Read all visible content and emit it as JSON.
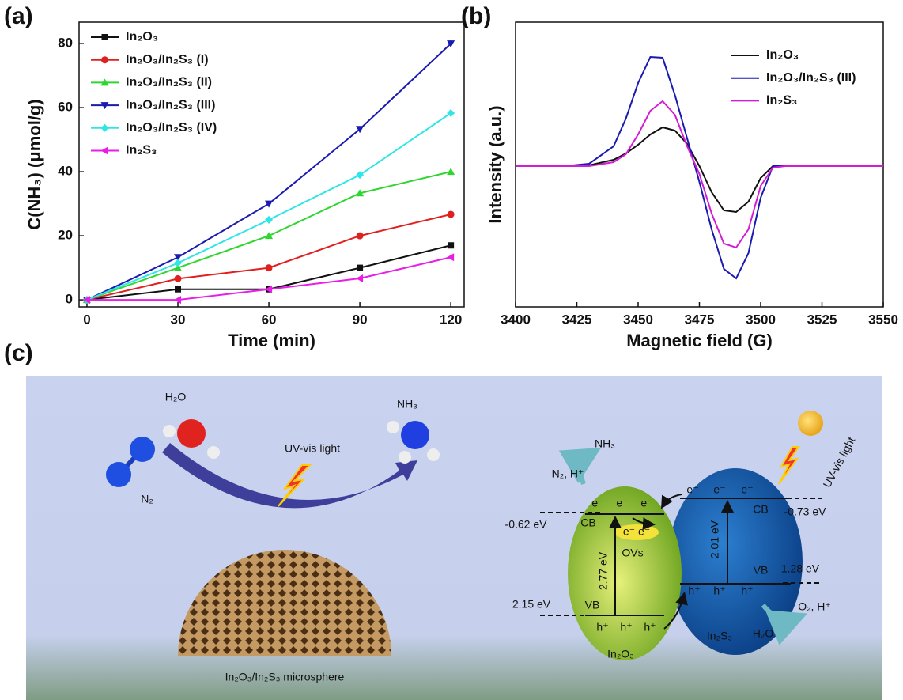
{
  "panel_labels": [
    "(a)",
    "(b)",
    "(c)"
  ],
  "chart_data": [
    {
      "type": "line",
      "x_label": "Time (min)",
      "y_label": "C(NH₃) (μmol/g)",
      "x": [
        0,
        30,
        60,
        90,
        120
      ],
      "xlim": [
        -2.6,
        124.4
      ],
      "xticks": [
        0,
        30,
        60,
        90,
        120
      ],
      "ylim": [
        -2.2,
        86.7
      ],
      "yticks": [
        0,
        20,
        40,
        60,
        80
      ],
      "legend": "upper left",
      "series": [
        {
          "name": "In₂O₃",
          "color": "#111111",
          "marker": "square",
          "values": [
            0,
            3.3,
            3.3,
            10,
            17
          ]
        },
        {
          "name": "In₂O₃/In₂S₃ (I)",
          "color": "#e01f1f",
          "marker": "circle",
          "values": [
            0,
            6.6,
            10,
            20,
            26.7
          ]
        },
        {
          "name": "In₂O₃/In₂S₃ (II)",
          "color": "#2fd62f",
          "marker": "triangle-up",
          "values": [
            0,
            10,
            20,
            33.3,
            40
          ]
        },
        {
          "name": "In₂O₃/In₂S₃ (III)",
          "color": "#1a1ab0",
          "marker": "triangle-down",
          "values": [
            0,
            13.3,
            30,
            53.3,
            80
          ]
        },
        {
          "name": "In₂O₃/In₂S₃ (IV)",
          "color": "#2ee6e6",
          "marker": "diamond",
          "values": [
            0,
            11.5,
            25,
            39,
            58.3
          ]
        },
        {
          "name": "In₂S₃",
          "color": "#e81ee8",
          "marker": "triangle-left",
          "values": [
            0,
            0,
            3.3,
            6.7,
            13.3
          ]
        }
      ]
    },
    {
      "type": "line",
      "x_label": "Magnetic field (G)",
      "y_label": "Intensity (a.u.)",
      "x": [
        3400,
        3420,
        3430,
        3440,
        3445,
        3450,
        3455,
        3460,
        3465,
        3470,
        3475,
        3480,
        3485,
        3490,
        3495,
        3500,
        3505,
        3510,
        3530,
        3550
      ],
      "xlim": [
        3400,
        3550
      ],
      "xticks": [
        3400,
        3425,
        3450,
        3475,
        3500,
        3525,
        3550
      ],
      "ylim": [
        -17.8,
        18.2
      ],
      "legend": "upper right",
      "series": [
        {
          "name": "In₂O₃",
          "color": "#111111",
          "values": [
            0,
            0,
            0.1,
            0.8,
            1.6,
            2.7,
            4.0,
            4.9,
            4.5,
            2.8,
            0,
            -3.3,
            -5.6,
            -5.8,
            -4.5,
            -1.5,
            0,
            0,
            0,
            0
          ]
        },
        {
          "name": "In₂O₃/In₂S₃ (III)",
          "color": "#1a1ab0",
          "values": [
            0,
            0,
            0.3,
            2.5,
            6,
            10.5,
            13.8,
            13.7,
            9,
            3.5,
            -2,
            -8,
            -13,
            -14.2,
            -11,
            -4,
            0,
            0,
            0,
            0
          ]
        },
        {
          "name": "In₂S₃",
          "color": "#d21ed2",
          "values": [
            0,
            0,
            0,
            0.5,
            1.5,
            4,
            7,
            8.2,
            6.5,
            2.5,
            -1,
            -6,
            -9.8,
            -10.3,
            -8,
            -2.5,
            -0.2,
            0,
            0,
            0
          ]
        }
      ]
    }
  ],
  "diagram": {
    "left": {
      "water": "H₂O",
      "nitrogen": "N₂",
      "light": "UV-vis light",
      "ammonia": "NH₃",
      "caption": "In₂O₃/In₂S₃ microsphere"
    },
    "right": {
      "ammonia": "NH₃",
      "reactants": "N₂, H⁺",
      "in2o3": {
        "cb_potential": "-0.62 eV",
        "cb": "CB",
        "electrons": [
          "e⁻",
          "e⁻",
          "e⁻"
        ],
        "trapped": "e⁻ e⁻",
        "vacancy": "OVs",
        "gap": "2.77 eV",
        "vb_potential": "2.15 eV",
        "vb": "VB",
        "holes": [
          "h⁺",
          "h⁺",
          "h⁺"
        ],
        "name": "In₂O₃"
      },
      "in2s3": {
        "electrons": [
          "e⁻",
          "e⁻",
          "e⁻"
        ],
        "cb": "CB",
        "cb_potential": "-0.73 eV",
        "gap": "2.01 eV",
        "vb": "VB",
        "vb_potential": "1.28 eV",
        "holes": [
          "h⁺",
          "h⁺",
          "h⁺"
        ],
        "name": "In₂S₃",
        "products": "O₂, H⁺",
        "water": "H₂O",
        "light": "UV-vis light"
      }
    }
  }
}
